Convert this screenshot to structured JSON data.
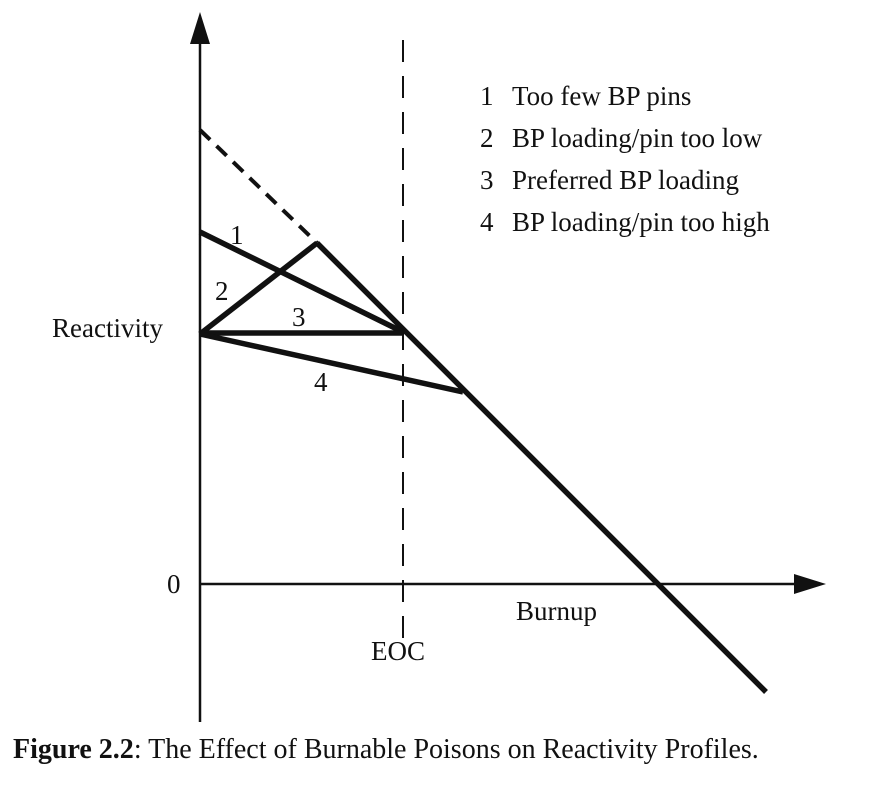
{
  "figure": {
    "y_axis_label": "Reactivity",
    "x_axis_label": "Burnup",
    "origin_label": "0",
    "eoc_label": "EOC",
    "curve_labels": [
      "1",
      "2",
      "3",
      "4"
    ],
    "legend": [
      {
        "num": "1",
        "text": "Too few BP pins"
      },
      {
        "num": "2",
        "text": "BP loading/pin too low"
      },
      {
        "num": "3",
        "text": "Preferred BP loading"
      },
      {
        "num": "4",
        "text": "BP loading/pin too high"
      }
    ]
  },
  "caption": {
    "label": "Figure 2.2",
    "text": ": The Effect of Burnable Poisons on Reactivity Profiles."
  }
}
